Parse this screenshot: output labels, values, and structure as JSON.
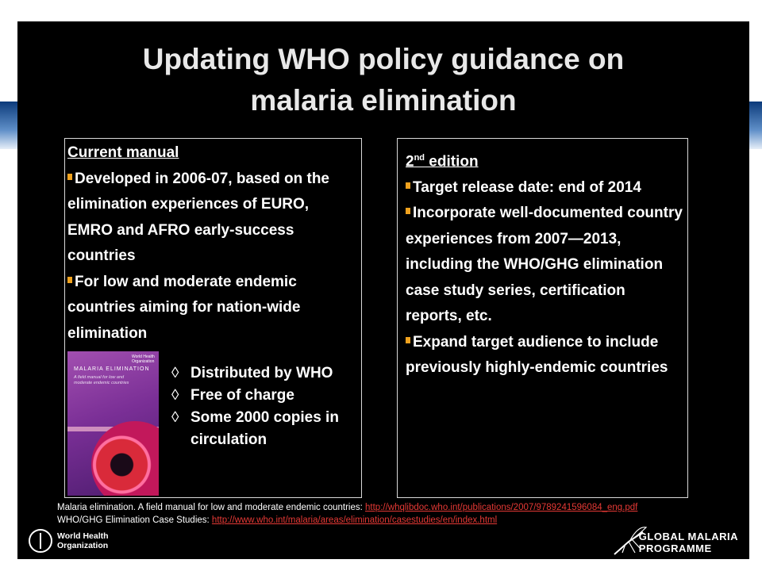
{
  "slide": {
    "title_line1": "Updating WHO policy guidance on",
    "title_line2": "malaria elimination"
  },
  "left_box": {
    "heading": "Current manual",
    "bullets": [
      "Developed in 2006-07, based on the elimination experiences of EURO, EMRO and AFRO early-success countries",
      "For low and moderate endemic countries aiming for nation-wide elimination"
    ],
    "diamond_items": [
      "Distributed by WHO",
      "Free of charge",
      "Some 2000 copies in circulation"
    ],
    "book_cover": {
      "title": "MALARIA ELIMINATION",
      "subtitle": "A field manual for low and moderate endemic countries",
      "publisher": "World Health Organization"
    }
  },
  "right_box": {
    "heading_main": "2",
    "heading_sup": "nd",
    "heading_rest": " edition",
    "bullets": [
      "Target release date:  end of 2014",
      "Incorporate well-documented country experiences from 2007—2013,  including the WHO/GHG elimination case study series, certification reports, etc.",
      "Expand target audience to include previously highly-endemic countries"
    ]
  },
  "references": {
    "line1_text": "Malaria elimination. A field manual for low and moderate endemic countries: ",
    "line1_link": "http://whqlibdoc.who.int/publications/2007/9789241596084_eng.pdf",
    "line2_text": "WHO/GHG Elimination Case Studies: ",
    "line2_link": "http://www.who.int/malaria/areas/elimination/casestudies/en/index.html"
  },
  "footer": {
    "who_line1": "World Health",
    "who_line2": "Organization",
    "gmp_line1": "GLOBAL MALARIA",
    "gmp_line2": "PROGRAMME"
  },
  "colors": {
    "slide_background": "#000000",
    "bullet_marker": "#f0a21e",
    "link": "#e53935"
  }
}
